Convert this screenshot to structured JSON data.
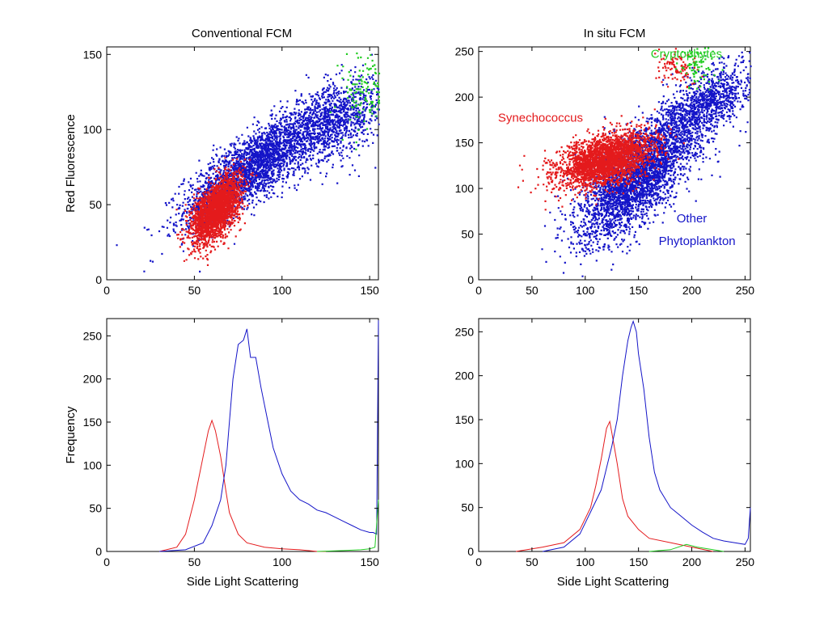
{
  "colors": {
    "synechococcus": "#e41a1c",
    "phytoplankton": "#1414c8",
    "cryptophytes": "#22cc22"
  },
  "chart_data": [
    {
      "id": "conv_scatter",
      "type": "scatter",
      "title": "Conventional FCM",
      "xlabel": "",
      "ylabel": "Red Fluorescence",
      "xlim": [
        0,
        155
      ],
      "ylim": [
        0,
        155
      ],
      "xticks": [
        0,
        50,
        100,
        150
      ],
      "yticks": [
        0,
        50,
        100,
        150
      ],
      "annotations": [],
      "series": [
        {
          "color_key": "phytoplankton",
          "clusters": [
            {
              "cx": 82,
              "cy": 75,
              "sx": 19,
              "sy": 18,
              "rho": 0.78,
              "n": 2600
            },
            {
              "cx": 128,
              "cy": 105,
              "sx": 15,
              "sy": 14,
              "rho": 0.5,
              "n": 1200
            }
          ]
        },
        {
          "color_key": "synechococcus",
          "clusters": [
            {
              "cx": 62,
              "cy": 47,
              "sx": 7,
              "sy": 11,
              "rho": 0.55,
              "n": 2300
            }
          ]
        },
        {
          "color_key": "cryptophytes",
          "clusters": [
            {
              "cx": 148,
              "cy": 125,
              "sx": 7,
              "sy": 14,
              "rho": 0.2,
              "n": 140
            }
          ]
        }
      ]
    },
    {
      "id": "insitu_scatter",
      "type": "scatter",
      "title": "In situ FCM",
      "xlabel": "",
      "ylabel": "",
      "xlim": [
        0,
        255
      ],
      "ylim": [
        0,
        255
      ],
      "xticks": [
        0,
        50,
        100,
        150,
        200,
        250
      ],
      "yticks": [
        0,
        50,
        100,
        150,
        200,
        250
      ],
      "annotations": [
        {
          "text": "Cryptophytes",
          "color_key": "cryptophytes",
          "x": 195,
          "y": 243
        },
        {
          "text": "Synechococcus",
          "color_key": "synechococcus",
          "x": 58,
          "y": 173
        },
        {
          "text": "Other",
          "color_key": "phytoplankton",
          "x": 200,
          "y": 63
        },
        {
          "text": "Phytoplankton",
          "color_key": "phytoplankton",
          "x": 205,
          "y": 38
        }
      ],
      "series": [
        {
          "color_key": "phytoplankton",
          "clusters": [
            {
              "cx": 150,
              "cy": 115,
              "sx": 28,
              "sy": 35,
              "rho": 0.72,
              "n": 3300
            },
            {
              "cx": 215,
              "cy": 195,
              "sx": 22,
              "sy": 22,
              "rho": 0.6,
              "n": 1000
            }
          ]
        },
        {
          "color_key": "synechococcus",
          "clusters": [
            {
              "cx": 118,
              "cy": 132,
              "sx": 22,
              "sy": 15,
              "rho": 0.45,
              "n": 2800
            },
            {
              "cx": 185,
              "cy": 232,
              "sx": 10,
              "sy": 10,
              "rho": 0.0,
              "n": 100
            }
          ]
        },
        {
          "color_key": "cryptophytes",
          "clusters": [
            {
              "cx": 205,
              "cy": 235,
              "sx": 9,
              "sy": 12,
              "rho": 0.0,
              "n": 90
            }
          ]
        }
      ]
    },
    {
      "id": "conv_hist",
      "type": "line",
      "title": "",
      "xlabel": "Side Light Scattering",
      "ylabel": "Frequency",
      "xlim": [
        0,
        155
      ],
      "ylim": [
        0,
        270
      ],
      "xticks": [
        0,
        50,
        100,
        150
      ],
      "yticks": [
        0,
        50,
        100,
        150,
        200,
        250
      ],
      "series": [
        {
          "color_key": "synechococcus",
          "x": [
            30,
            40,
            45,
            50,
            55,
            58,
            60,
            62,
            65,
            68,
            70,
            75,
            80,
            90,
            100,
            110,
            120,
            125
          ],
          "y": [
            0,
            5,
            20,
            60,
            110,
            140,
            152,
            140,
            110,
            70,
            45,
            20,
            10,
            5,
            3,
            2,
            0,
            0
          ]
        },
        {
          "color_key": "phytoplankton",
          "x": [
            30,
            45,
            55,
            60,
            65,
            68,
            70,
            72,
            75,
            78,
            80,
            82,
            85,
            88,
            90,
            92,
            95,
            100,
            105,
            110,
            115,
            120,
            125,
            130,
            135,
            140,
            145,
            150,
            152,
            154,
            155
          ],
          "y": [
            0,
            2,
            10,
            30,
            60,
            100,
            150,
            200,
            240,
            245,
            258,
            225,
            225,
            190,
            170,
            150,
            120,
            90,
            70,
            60,
            55,
            48,
            45,
            40,
            35,
            30,
            25,
            22,
            22,
            20,
            268
          ]
        },
        {
          "color_key": "cryptophytes",
          "x": [
            120,
            135,
            145,
            150,
            153,
            155
          ],
          "y": [
            0,
            1,
            2,
            3,
            5,
            60
          ]
        }
      ]
    },
    {
      "id": "insitu_hist",
      "type": "line",
      "title": "",
      "xlabel": "Side Light Scattering",
      "ylabel": "",
      "xlim": [
        0,
        255
      ],
      "ylim": [
        0,
        265
      ],
      "xticks": [
        0,
        50,
        100,
        150,
        200,
        250
      ],
      "yticks": [
        0,
        50,
        100,
        150,
        200,
        250
      ],
      "series": [
        {
          "color_key": "synechococcus",
          "x": [
            35,
            60,
            80,
            95,
            105,
            110,
            115,
            120,
            123,
            125,
            130,
            135,
            140,
            150,
            160,
            180,
            200,
            220
          ],
          "y": [
            0,
            5,
            10,
            25,
            50,
            75,
            105,
            140,
            148,
            135,
            100,
            60,
            40,
            25,
            15,
            10,
            5,
            0
          ]
        },
        {
          "color_key": "phytoplankton",
          "x": [
            60,
            80,
            95,
            105,
            115,
            120,
            125,
            130,
            135,
            140,
            143,
            145,
            148,
            150,
            155,
            160,
            165,
            170,
            180,
            190,
            200,
            210,
            220,
            230,
            240,
            250,
            253,
            255
          ],
          "y": [
            0,
            5,
            20,
            45,
            70,
            95,
            120,
            150,
            200,
            240,
            255,
            262,
            250,
            225,
            185,
            130,
            90,
            70,
            50,
            40,
            30,
            22,
            15,
            12,
            10,
            8,
            15,
            50
          ]
        },
        {
          "color_key": "cryptophytes",
          "x": [
            160,
            180,
            195,
            205,
            215,
            230
          ],
          "y": [
            0,
            2,
            8,
            5,
            3,
            0
          ]
        }
      ]
    }
  ]
}
